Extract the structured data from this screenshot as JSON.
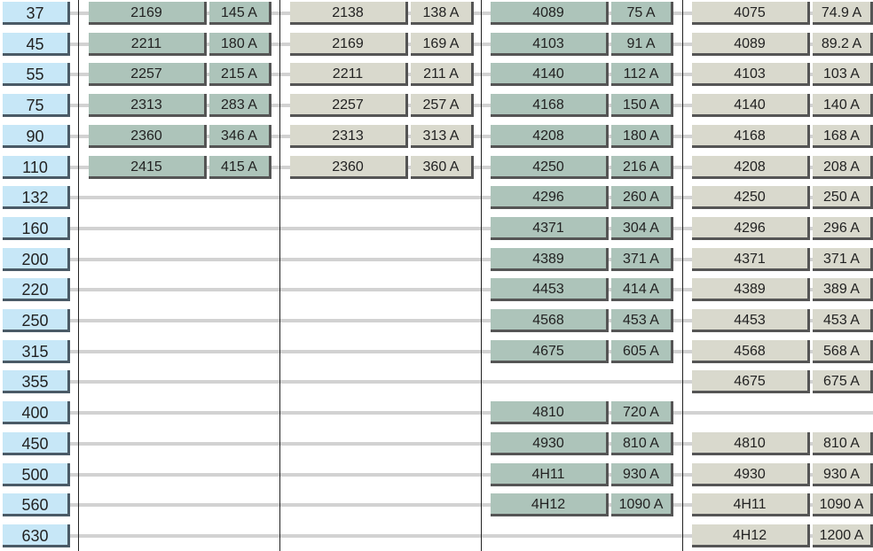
{
  "colors": {
    "rating": "#c7e7f7",
    "green": "#adc4ba",
    "beige": "#d9d9cd"
  },
  "ratings": [
    "37",
    "45",
    "55",
    "75",
    "90",
    "110",
    "132",
    "160",
    "200",
    "220",
    "250",
    "315",
    "355",
    "400",
    "450",
    "500",
    "560",
    "630"
  ],
  "groups": [
    {
      "color": "green",
      "rows": [
        [
          "2169",
          "145 A"
        ],
        [
          "2211",
          "180 A"
        ],
        [
          "2257",
          "215 A"
        ],
        [
          "2313",
          "283 A"
        ],
        [
          "2360",
          "346 A"
        ],
        [
          "2415",
          "415 A"
        ],
        null,
        null,
        null,
        null,
        null,
        null,
        null,
        null,
        null,
        null,
        null,
        null
      ]
    },
    {
      "color": "beige",
      "rows": [
        [
          "2138",
          "138 A"
        ],
        [
          "2169",
          "169 A"
        ],
        [
          "2211",
          "211 A"
        ],
        [
          "2257",
          "257 A"
        ],
        [
          "2313",
          "313 A"
        ],
        [
          "2360",
          "360 A"
        ],
        null,
        null,
        null,
        null,
        null,
        null,
        null,
        null,
        null,
        null,
        null,
        null
      ]
    },
    {
      "color": "green",
      "rows": [
        [
          "4089",
          "75 A"
        ],
        [
          "4103",
          "91 A"
        ],
        [
          "4140",
          "112 A"
        ],
        [
          "4168",
          "150 A"
        ],
        [
          "4208",
          "180 A"
        ],
        [
          "4250",
          "216 A"
        ],
        [
          "4296",
          "260 A"
        ],
        [
          "4371",
          "304 A"
        ],
        [
          "4389",
          "371 A"
        ],
        [
          "4453",
          "414 A"
        ],
        [
          "4568",
          "453 A"
        ],
        [
          "4675",
          "605 A"
        ],
        null,
        [
          "4810",
          "720 A"
        ],
        [
          "4930",
          "810 A"
        ],
        [
          "4H11",
          "930 A"
        ],
        [
          "4H12",
          "1090 A"
        ],
        null
      ]
    },
    {
      "color": "beige",
      "rows": [
        [
          "4075",
          "74.9 A"
        ],
        [
          "4089",
          "89.2 A"
        ],
        [
          "4103",
          "103 A"
        ],
        [
          "4140",
          "140 A"
        ],
        [
          "4168",
          "168 A"
        ],
        [
          "4208",
          "208 A"
        ],
        [
          "4250",
          "250 A"
        ],
        [
          "4296",
          "296 A"
        ],
        [
          "4371",
          "371 A"
        ],
        [
          "4389",
          "389 A"
        ],
        [
          "4453",
          "453 A"
        ],
        [
          "4568",
          "568 A"
        ],
        [
          "4675",
          "675 A"
        ],
        null,
        [
          "4810",
          "810 A"
        ],
        [
          "4930",
          "930 A"
        ],
        [
          "4H11",
          "1090 A"
        ],
        [
          "4H12",
          "1200 A"
        ]
      ]
    }
  ]
}
